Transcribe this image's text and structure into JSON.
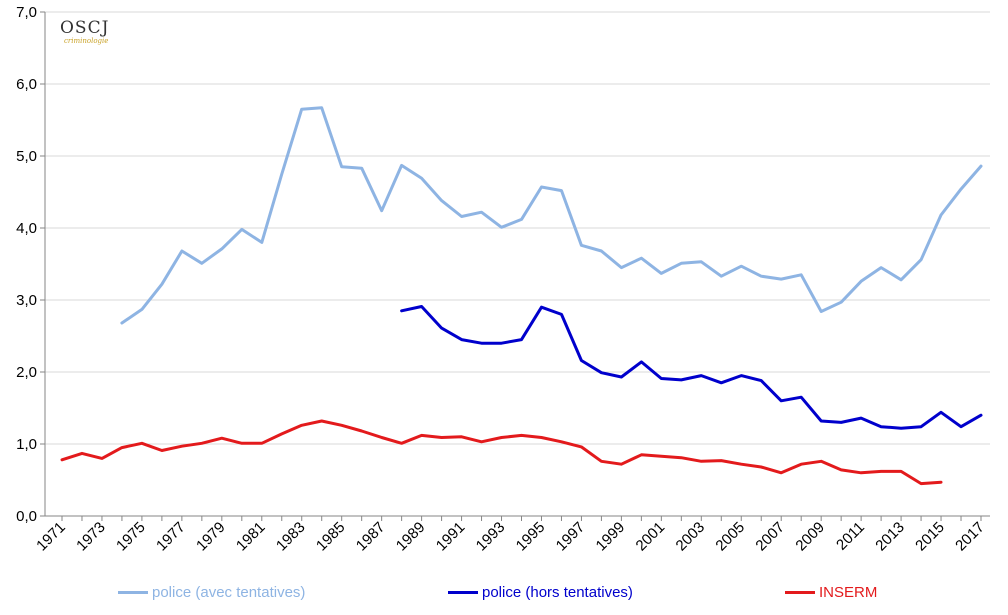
{
  "chart_data": {
    "type": "line",
    "title": "",
    "xlabel": "",
    "ylabel": "",
    "ylim": [
      0,
      7
    ],
    "y_ticks": [
      "0,0",
      "1,0",
      "2,0",
      "3,0",
      "4,0",
      "5,0",
      "6,0",
      "7,0"
    ],
    "x_tick_labels": [
      "1971",
      "1973",
      "1975",
      "1977",
      "1979",
      "1981",
      "1983",
      "1985",
      "1987",
      "1989",
      "1991",
      "1993",
      "1995",
      "1997",
      "1999",
      "2001",
      "2003",
      "2005",
      "2007",
      "2009",
      "2011",
      "2013",
      "2015",
      "2017"
    ],
    "grid": "horizontal",
    "legend_position": "bottom",
    "x": [
      1971,
      1972,
      1973,
      1974,
      1975,
      1976,
      1977,
      1978,
      1979,
      1980,
      1981,
      1982,
      1983,
      1984,
      1985,
      1986,
      1987,
      1988,
      1989,
      1990,
      1991,
      1992,
      1993,
      1994,
      1995,
      1996,
      1997,
      1998,
      1999,
      2000,
      2001,
      2002,
      2003,
      2004,
      2005,
      2006,
      2007,
      2008,
      2009,
      2010,
      2011,
      2012,
      2013,
      2014,
      2015,
      2016,
      2017
    ],
    "series": [
      {
        "name": "police (avec tentatives)",
        "color": "#8eb4e3",
        "values": [
          null,
          null,
          null,
          2.68,
          2.87,
          3.22,
          3.68,
          3.51,
          3.71,
          3.98,
          3.8,
          4.75,
          5.65,
          5.67,
          4.85,
          4.83,
          4.24,
          4.87,
          4.69,
          4.38,
          4.16,
          4.22,
          4.01,
          4.12,
          4.57,
          4.52,
          3.76,
          3.68,
          3.45,
          3.58,
          3.37,
          3.51,
          3.53,
          3.33,
          3.47,
          3.33,
          3.29,
          3.35,
          2.84,
          2.97,
          3.26,
          3.45,
          3.28,
          3.56,
          4.18,
          4.54,
          4.86
        ]
      },
      {
        "name": "police (hors tentatives)",
        "color": "#0000cc",
        "values": [
          null,
          null,
          null,
          null,
          null,
          null,
          null,
          null,
          null,
          null,
          null,
          null,
          null,
          null,
          null,
          null,
          null,
          2.85,
          2.91,
          2.61,
          2.45,
          2.4,
          2.4,
          2.45,
          2.9,
          2.8,
          2.16,
          1.99,
          1.93,
          2.14,
          1.91,
          1.89,
          1.95,
          1.85,
          1.95,
          1.88,
          1.6,
          1.65,
          1.32,
          1.3,
          1.36,
          1.24,
          1.22,
          1.24,
          1.44,
          1.24,
          1.4
        ]
      },
      {
        "name": "INSERM",
        "color": "#e31a1c",
        "values": [
          0.78,
          0.87,
          0.8,
          0.95,
          1.01,
          0.91,
          0.97,
          1.01,
          1.08,
          1.01,
          1.01,
          1.14,
          1.26,
          1.32,
          1.26,
          1.18,
          1.09,
          1.01,
          1.12,
          1.09,
          1.1,
          1.03,
          1.09,
          1.12,
          1.09,
          1.03,
          0.96,
          0.76,
          0.72,
          0.85,
          0.83,
          0.81,
          0.76,
          0.77,
          0.72,
          0.68,
          0.6,
          0.72,
          0.76,
          0.64,
          0.6,
          0.62,
          0.62,
          0.45,
          0.47,
          null,
          null
        ]
      }
    ]
  },
  "logo": {
    "text": "OSCJ",
    "subtext": "criminologie"
  }
}
